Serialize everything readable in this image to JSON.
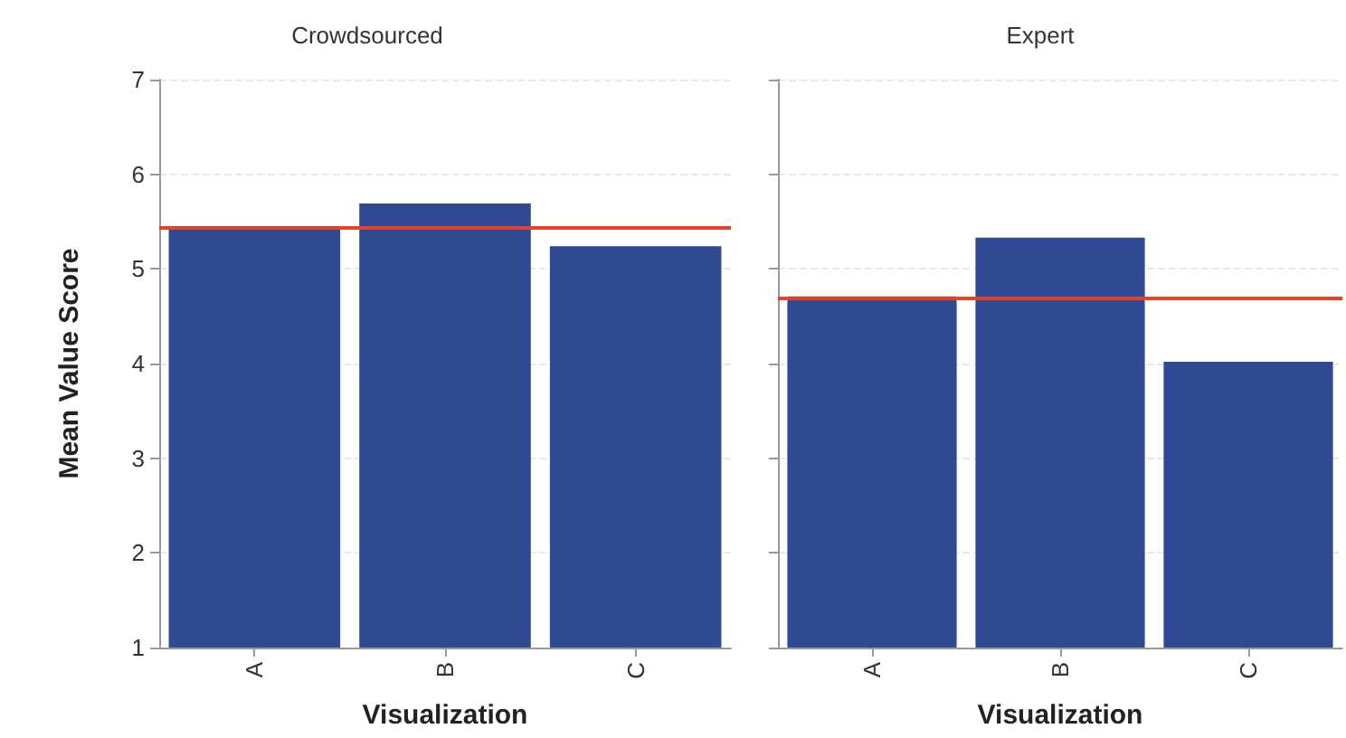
{
  "chart_data": [
    {
      "type": "bar",
      "title": "Crowdsourced",
      "xlabel": "Visualization",
      "ylabel": "Mean Value Score",
      "categories": [
        "A",
        "B",
        "C"
      ],
      "values": [
        5.42,
        5.69,
        5.24
      ],
      "color": "#2f4a93",
      "ylim": [
        1,
        7
      ],
      "yticks": [
        1,
        2,
        3,
        4,
        5,
        6,
        7
      ],
      "grid": "y",
      "ref_lines": [
        {
          "axis": "y",
          "value": 5.44,
          "color": "#e0452a"
        }
      ]
    },
    {
      "type": "bar",
      "title": "Expert",
      "xlabel": "Visualization",
      "categories": [
        "A",
        "B",
        "C"
      ],
      "values": [
        4.71,
        5.33,
        4.02
      ],
      "color": "#2f4a93",
      "ylim": [
        1,
        7
      ],
      "yticks": [
        1,
        2,
        3,
        4,
        5,
        6,
        7
      ],
      "grid": "y",
      "tick_labels": "x",
      "ref_lines": [
        {
          "axis": "y",
          "value": 4.7,
          "color": "#e0452a"
        }
      ]
    }
  ]
}
